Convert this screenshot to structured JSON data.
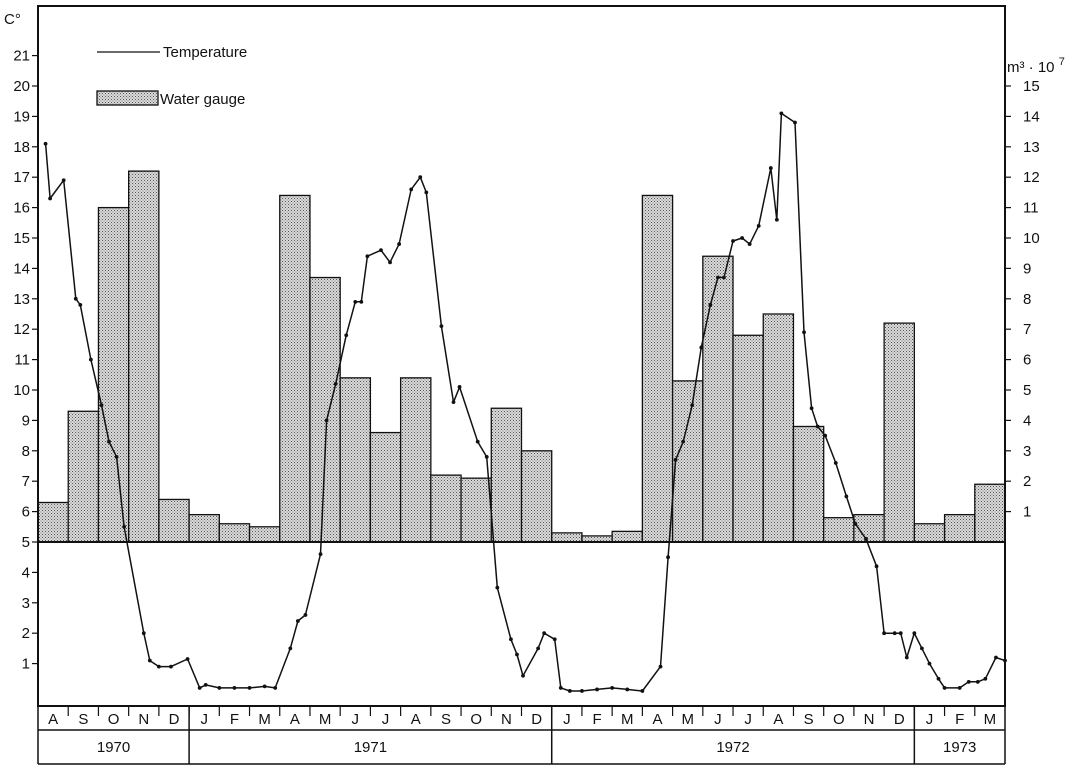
{
  "chart_data": {
    "type": "bar+line",
    "title": "",
    "legend": {
      "placement": "top-left",
      "line_label": "Temperature",
      "bar_label": "Water gauge"
    },
    "left_axis": {
      "unit": "C°",
      "ylim": [
        0,
        22
      ],
      "ticks": [
        "1",
        "2",
        "3",
        "4",
        "5",
        "6",
        "7",
        "8",
        "9",
        "10",
        "11",
        "12",
        "13",
        "14",
        "15",
        "16",
        "17",
        "18",
        "19",
        "20",
        "21"
      ]
    },
    "right_axis": {
      "unit_base": "m³",
      "unit_exp_prefix": "· 10",
      "unit_exp": "7",
      "zero_at_left_value": 5,
      "units_per_step": 1,
      "ticks": [
        "1",
        "2",
        "3",
        "4",
        "5",
        "6",
        "7",
        "8",
        "9",
        "10",
        "11",
        "12",
        "13",
        "14",
        "15"
      ]
    },
    "months": [
      "A",
      "S",
      "O",
      "N",
      "D",
      "J",
      "F",
      "M",
      "A",
      "M",
      "J",
      "J",
      "A",
      "S",
      "O",
      "N",
      "D",
      "J",
      "F",
      "M",
      "A",
      "M",
      "J",
      "J",
      "A",
      "S",
      "O",
      "N",
      "D",
      "J",
      "F",
      "M"
    ],
    "years": [
      {
        "label": "1970",
        "start": 0,
        "end": 5
      },
      {
        "label": "1971",
        "start": 5,
        "end": 17
      },
      {
        "label": "1972",
        "start": 17,
        "end": 29
      },
      {
        "label": "1973",
        "start": 29,
        "end": 32
      }
    ],
    "series": [
      {
        "name": "Water gauge",
        "type": "bar",
        "units": "m³·10⁷",
        "values": [
          1.3,
          4.3,
          11.0,
          12.2,
          1.4,
          0.9,
          0.6,
          0.5,
          11.4,
          8.7,
          5.4,
          3.6,
          5.4,
          2.2,
          2.1,
          4.4,
          3.0,
          0.3,
          0.2,
          0.35,
          11.4,
          5.3,
          9.4,
          6.8,
          7.5,
          3.8,
          0.8,
          0.9,
          7.2,
          0.6,
          0.9,
          1.9
        ]
      },
      {
        "name": "Temperature",
        "type": "line",
        "units": "C°",
        "points": [
          [
            0.25,
            18.1
          ],
          [
            0.4,
            16.3
          ],
          [
            0.85,
            16.9
          ],
          [
            1.25,
            13.0
          ],
          [
            1.4,
            12.8
          ],
          [
            1.75,
            11.0
          ],
          [
            2.1,
            9.5
          ],
          [
            2.35,
            8.3
          ],
          [
            2.6,
            7.8
          ],
          [
            2.85,
            5.5
          ],
          [
            3.5,
            2.0
          ],
          [
            3.7,
            1.1
          ],
          [
            4.0,
            0.9
          ],
          [
            4.4,
            0.9
          ],
          [
            4.95,
            1.15
          ],
          [
            5.35,
            0.2
          ],
          [
            5.55,
            0.3
          ],
          [
            6.0,
            0.2
          ],
          [
            6.5,
            0.2
          ],
          [
            7.0,
            0.2
          ],
          [
            7.5,
            0.25
          ],
          [
            7.85,
            0.2
          ],
          [
            8.35,
            1.5
          ],
          [
            8.6,
            2.4
          ],
          [
            8.85,
            2.6
          ],
          [
            9.35,
            4.6
          ],
          [
            9.55,
            9.0
          ],
          [
            9.85,
            10.2
          ],
          [
            10.2,
            11.8
          ],
          [
            10.5,
            12.9
          ],
          [
            10.7,
            12.9
          ],
          [
            10.9,
            14.4
          ],
          [
            11.35,
            14.6
          ],
          [
            11.65,
            14.2
          ],
          [
            11.95,
            14.8
          ],
          [
            12.35,
            16.6
          ],
          [
            12.65,
            17.0
          ],
          [
            12.85,
            16.5
          ],
          [
            13.35,
            12.1
          ],
          [
            13.75,
            9.6
          ],
          [
            13.95,
            10.1
          ],
          [
            14.55,
            8.3
          ],
          [
            14.85,
            7.8
          ],
          [
            15.2,
            3.5
          ],
          [
            15.65,
            1.8
          ],
          [
            15.85,
            1.3
          ],
          [
            16.05,
            0.6
          ],
          [
            16.55,
            1.5
          ],
          [
            16.75,
            2.0
          ],
          [
            17.1,
            1.8
          ],
          [
            17.3,
            0.2
          ],
          [
            17.6,
            0.1
          ],
          [
            18.0,
            0.1
          ],
          [
            18.5,
            0.15
          ],
          [
            19.0,
            0.2
          ],
          [
            19.5,
            0.15
          ],
          [
            20.0,
            0.1
          ],
          [
            20.6,
            0.9
          ],
          [
            20.85,
            4.5
          ],
          [
            21.1,
            7.7
          ],
          [
            21.35,
            8.3
          ],
          [
            21.65,
            9.5
          ],
          [
            21.95,
            11.4
          ],
          [
            22.25,
            12.8
          ],
          [
            22.5,
            13.7
          ],
          [
            22.7,
            13.7
          ],
          [
            23.0,
            14.9
          ],
          [
            23.3,
            15.0
          ],
          [
            23.55,
            14.8
          ],
          [
            23.85,
            15.4
          ],
          [
            24.25,
            17.3
          ],
          [
            24.45,
            15.6
          ],
          [
            24.6,
            19.1
          ],
          [
            25.05,
            18.8
          ],
          [
            25.35,
            11.9
          ],
          [
            25.6,
            9.4
          ],
          [
            25.8,
            8.8
          ],
          [
            26.05,
            8.5
          ],
          [
            26.4,
            7.6
          ],
          [
            26.75,
            6.5
          ],
          [
            27.05,
            5.6
          ],
          [
            27.4,
            5.1
          ],
          [
            27.75,
            4.2
          ],
          [
            28.0,
            2.0
          ],
          [
            28.35,
            2.0
          ],
          [
            28.55,
            2.0
          ],
          [
            28.75,
            1.2
          ],
          [
            29.0,
            2.0
          ],
          [
            29.25,
            1.5
          ],
          [
            29.5,
            1.0
          ],
          [
            29.8,
            0.5
          ],
          [
            30.0,
            0.2
          ],
          [
            30.5,
            0.2
          ],
          [
            30.8,
            0.4
          ],
          [
            31.1,
            0.4
          ],
          [
            31.35,
            0.5
          ],
          [
            31.7,
            1.2
          ],
          [
            32.0,
            1.1
          ]
        ]
      }
    ],
    "grid": false
  }
}
